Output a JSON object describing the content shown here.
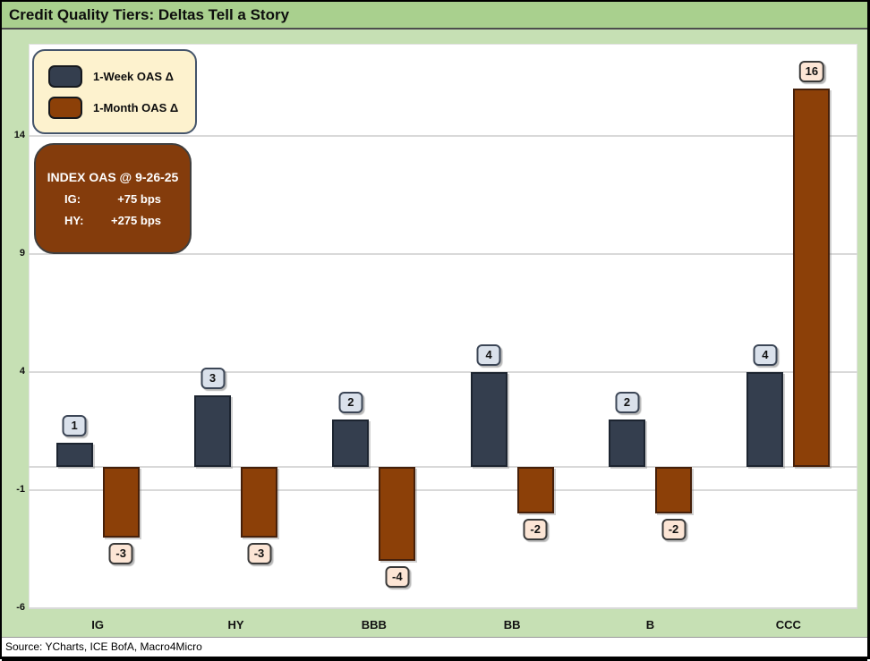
{
  "window": {
    "title": "Credit Quality Tiers: Deltas Tell a Story"
  },
  "legend": {
    "items": [
      {
        "label": "1-Week OAS Δ"
      },
      {
        "label": "1-Month OAS Δ"
      }
    ]
  },
  "annotation": {
    "heading": "INDEX OAS @ 9-26-25",
    "rows": [
      {
        "label": "IG:",
        "value": "+75 bps"
      },
      {
        "label": "HY:",
        "value": "+275 bps"
      }
    ]
  },
  "footer": {
    "source": "Source: YCharts, ICE BofA, Macro4Micro"
  },
  "colors": {
    "title_bar": "#a9d08e",
    "chart_background": "#c6e0b4",
    "plot_background": "#ffffff",
    "gridline": "#d9d9d9",
    "week_bar": "#343e4e",
    "month_bar": "#8c4008",
    "week_label_bg": "#dae1eb",
    "month_label_bg": "#fce5d5",
    "legend_bg": "#fdf2ce",
    "legend_border": "#44546a",
    "annotation_bg": "#843c0c"
  },
  "chart_data": {
    "type": "bar",
    "title": "Credit Quality Tiers: Deltas Tell a Story",
    "categories": [
      "IG",
      "HY",
      "BBB",
      "BB",
      "B",
      "CCC"
    ],
    "series": [
      {
        "name": "1-Week OAS Δ",
        "color": "#343e4e",
        "values": [
          1,
          3,
          2,
          4,
          2,
          4
        ]
      },
      {
        "name": "1-Month OAS Δ",
        "color": "#8c4008",
        "values": [
          -3,
          -3,
          -4,
          -2,
          -2,
          16
        ]
      }
    ],
    "xlabel": "",
    "ylabel": "",
    "y_ticks": [
      -6,
      -1,
      4,
      9,
      14
    ],
    "ylim": [
      -6,
      17.9
    ],
    "grid": true,
    "zero_line": 0,
    "legend_position": "top-left",
    "data_labels": true
  }
}
